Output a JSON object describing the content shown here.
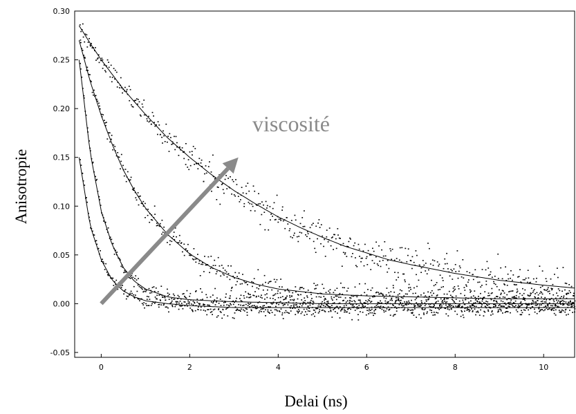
{
  "chart_data": {
    "type": "scatter",
    "title": "",
    "xlabel": "Delai  (ns)",
    "ylabel": "Anisotropie",
    "xlim": [
      -0.6,
      10.7
    ],
    "ylim": [
      -0.055,
      0.3
    ],
    "grid": false,
    "legend": "none",
    "x_ticks": [
      0,
      2,
      4,
      6,
      8,
      10
    ],
    "x_tick_labels": [
      "0",
      "2",
      "4",
      "6",
      "8",
      "10"
    ],
    "y_ticks": [
      -0.05,
      0.0,
      0.05,
      0.1,
      0.15,
      0.2,
      0.25,
      0.3
    ],
    "y_tick_labels": [
      "-0.05",
      "0.00",
      "0.05",
      "0.10",
      "0.15",
      "0.20",
      "0.25",
      "0.30"
    ],
    "annotation": {
      "text": "viscosité",
      "arrow_from": [
        0.0,
        0.0
      ],
      "arrow_to": [
        3.1,
        0.15
      ],
      "color": "#8a8a8a"
    },
    "series": [
      {
        "marker_color": "#000000",
        "fit_x": [
          -0.5,
          -0.25,
          0,
          0.25,
          0.5,
          0.75,
          1,
          1.5,
          2,
          2.5,
          3,
          4,
          5,
          6,
          7,
          8,
          9,
          10,
          10.7
        ],
        "fit_y": [
          0.15,
          0.08,
          0.045,
          0.024,
          0.013,
          0.007,
          0.003,
          0.0,
          -0.002,
          -0.003,
          -0.004,
          -0.004,
          -0.004,
          -0.004,
          -0.004,
          -0.004,
          -0.004,
          -0.004,
          -0.004
        ],
        "noise": 0.008
      },
      {
        "marker_color": "#000000",
        "fit_x": [
          -0.5,
          -0.25,
          0,
          0.25,
          0.5,
          0.75,
          1,
          1.5,
          2,
          2.5,
          3,
          4,
          5,
          6,
          7,
          8,
          9,
          10,
          10.7
        ],
        "fit_y": [
          0.25,
          0.155,
          0.095,
          0.06,
          0.037,
          0.023,
          0.015,
          0.007,
          0.004,
          0.003,
          0.002,
          0.001,
          0.0,
          0.0,
          0.0,
          0.0,
          0.0,
          0.0,
          0.0
        ],
        "noise": 0.009
      },
      {
        "marker_color": "#000000",
        "fit_x": [
          -0.5,
          -0.25,
          0,
          0.25,
          0.5,
          0.75,
          1,
          1.5,
          2,
          2.5,
          3,
          3.5,
          4,
          5,
          6,
          7,
          8,
          9,
          10,
          10.7
        ],
        "fit_y": [
          0.27,
          0.228,
          0.193,
          0.163,
          0.137,
          0.116,
          0.098,
          0.071,
          0.051,
          0.037,
          0.027,
          0.02,
          0.015,
          0.01,
          0.008,
          0.007,
          0.006,
          0.005,
          0.005,
          0.005
        ],
        "noise": 0.011
      },
      {
        "marker_color": "#000000",
        "fit_x": [
          -0.5,
          -0.25,
          0,
          0.5,
          1,
          1.5,
          2,
          2.5,
          3,
          3.5,
          4,
          4.5,
          5,
          5.5,
          6,
          6.5,
          7,
          8,
          9,
          10,
          10.7
        ],
        "fit_y": [
          0.285,
          0.267,
          0.25,
          0.22,
          0.194,
          0.17,
          0.15,
          0.132,
          0.116,
          0.102,
          0.089,
          0.078,
          0.068,
          0.059,
          0.052,
          0.045,
          0.04,
          0.031,
          0.024,
          0.019,
          0.016
        ],
        "noise": 0.016
      }
    ]
  }
}
